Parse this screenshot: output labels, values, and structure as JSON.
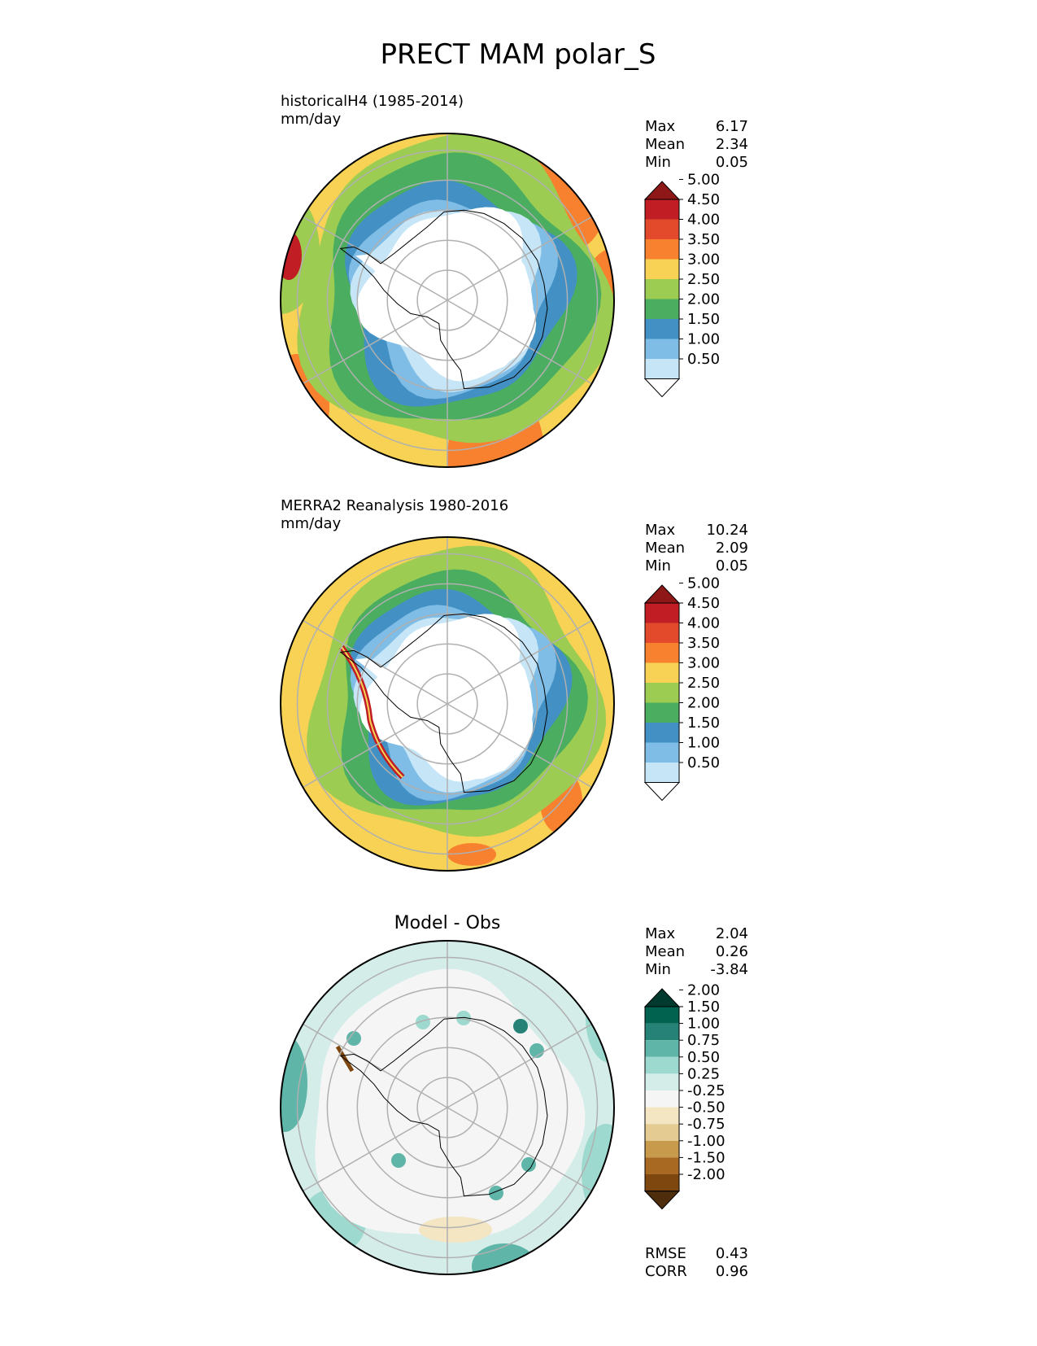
{
  "figure": {
    "title": "PRECT MAM polar_S"
  },
  "colors": {
    "main": [
      "#ffffff",
      "#c6e6f8",
      "#7fbde6",
      "#4391c4",
      "#4aad5f",
      "#9ccd52",
      "#f7d254",
      "#f7812f",
      "#e24a2b",
      "#c01d24",
      "#8e1717"
    ],
    "diff": [
      "#4d2d0c",
      "#7e4710",
      "#a86a23",
      "#c89a4c",
      "#e4cb91",
      "#f4e5c3",
      "#f5f5f5",
      "#d5ede9",
      "#9dd9cf",
      "#5eb5a8",
      "#268276",
      "#00624f",
      "#003a2e"
    ],
    "ocean_base": "#f7d254",
    "grid": "#b0b0b0",
    "coast": "#000000"
  },
  "panels": [
    {
      "id": "test",
      "title_line1": "historicalH4 (1985-2014)",
      "title_line2": "mm/day",
      "stats": [
        {
          "label": "Max",
          "value": "6.17"
        },
        {
          "label": "Mean",
          "value": "2.34"
        },
        {
          "label": "Min",
          "value": "0.05"
        }
      ],
      "colorbar": {
        "scheme": "main",
        "tick_labels": [
          "0.50",
          "1.00",
          "1.50",
          "2.00",
          "2.50",
          "3.00",
          "3.50",
          "4.00",
          "4.50",
          "5.00"
        ]
      }
    },
    {
      "id": "ref",
      "title_line1": "MERRA2 Reanalysis 1980-2016",
      "title_line2": "mm/day",
      "stats": [
        {
          "label": "Max",
          "value": "10.24"
        },
        {
          "label": "Mean",
          "value": "2.09"
        },
        {
          "label": "Min",
          "value": "0.05"
        }
      ],
      "colorbar": {
        "scheme": "main",
        "tick_labels": [
          "0.50",
          "1.00",
          "1.50",
          "2.00",
          "2.50",
          "3.00",
          "3.50",
          "4.00",
          "4.50",
          "5.00"
        ]
      }
    },
    {
      "id": "diff",
      "title_center": "Model - Obs",
      "stats": [
        {
          "label": "Max",
          "value": "2.04"
        },
        {
          "label": "Mean",
          "value": "0.26"
        },
        {
          "label": "Min",
          "value": "-3.84"
        }
      ],
      "colorbar": {
        "scheme": "diff",
        "tick_labels": [
          "-2.00",
          "-1.50",
          "-1.00",
          "-0.75",
          "-0.50",
          "-0.25",
          "0.25",
          "0.50",
          "0.75",
          "1.00",
          "1.50",
          "2.00"
        ]
      },
      "metrics": [
        {
          "label": "RMSE",
          "value": "0.43"
        },
        {
          "label": "CORR",
          "value": "0.96"
        }
      ]
    }
  ],
  "chart_data": [
    {
      "type": "heatmap",
      "projection": "south-polar-stereographic",
      "variable": "PRECT",
      "season": "MAM",
      "units": "mm/day",
      "title": "historicalH4 (1985-2014)",
      "levels": [
        0.5,
        1.0,
        1.5,
        2.0,
        2.5,
        3.0,
        3.5,
        4.0,
        4.5,
        5.0
      ],
      "extend": "both",
      "stats": {
        "max": 6.17,
        "mean": 2.34,
        "min": 0.05
      }
    },
    {
      "type": "heatmap",
      "projection": "south-polar-stereographic",
      "variable": "PRECT",
      "season": "MAM",
      "units": "mm/day",
      "title": "MERRA2 Reanalysis 1980-2016",
      "levels": [
        0.5,
        1.0,
        1.5,
        2.0,
        2.5,
        3.0,
        3.5,
        4.0,
        4.5,
        5.0
      ],
      "extend": "both",
      "stats": {
        "max": 10.24,
        "mean": 2.09,
        "min": 0.05
      }
    },
    {
      "type": "heatmap",
      "projection": "south-polar-stereographic",
      "variable": "PRECT",
      "season": "MAM",
      "title": "Model - Obs",
      "levels": [
        -2.0,
        -1.5,
        -1.0,
        -0.75,
        -0.5,
        -0.25,
        0.25,
        0.5,
        0.75,
        1.0,
        1.5,
        2.0
      ],
      "extend": "both",
      "stats": {
        "max": 2.04,
        "mean": 0.26,
        "min": -3.84
      },
      "metrics": {
        "rmse": 0.43,
        "corr": 0.96
      }
    }
  ]
}
